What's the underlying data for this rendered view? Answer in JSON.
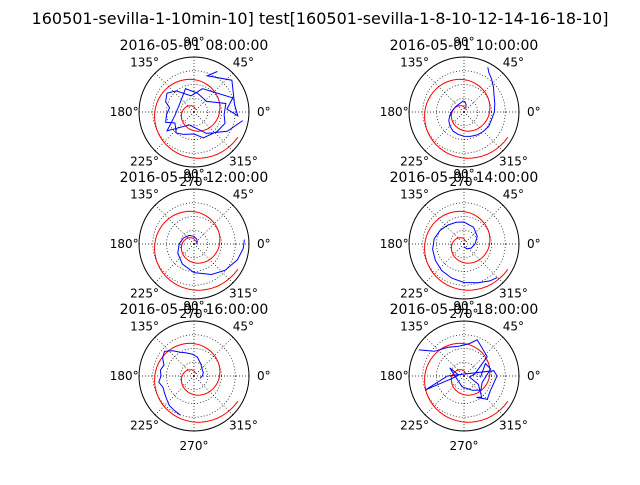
{
  "figure": {
    "title": "160501-sevilla-1-10min-10] test[160501-sevilla-1-8-10-12-14-16-18-10]"
  },
  "chart_data": [
    {
      "type": "polar-line",
      "title": "2016-05-01 08:00:00",
      "angular_ticks": [
        "0°",
        "45°",
        "90°",
        "135°",
        "180°",
        "225°",
        "270°",
        "315°"
      ],
      "series": [
        {
          "color": "#ff0000",
          "points": "spiral"
        },
        {
          "color": "#0000ff",
          "points": [
            [
              60,
              0.85
            ],
            [
              70,
              0.7
            ],
            [
              40,
              0.9
            ],
            [
              10,
              0.75
            ],
            [
              355,
              0.8
            ],
            [
              5,
              0.6
            ],
            [
              20,
              0.75
            ],
            [
              70,
              0.45
            ],
            [
              100,
              0.3
            ],
            [
              130,
              0.5
            ],
            [
              145,
              0.6
            ],
            [
              160,
              0.55
            ],
            [
              170,
              0.45
            ],
            [
              185,
              0.5
            ],
            [
              200,
              0.55
            ],
            [
              210,
              0.4
            ],
            [
              230,
              0.5
            ],
            [
              245,
              0.45
            ],
            [
              270,
              0.4
            ],
            [
              290,
              0.5
            ],
            [
              320,
              0.55
            ],
            [
              340,
              0.6
            ],
            [
              355,
              0.55
            ],
            [
              15,
              0.6
            ],
            [
              40,
              0.3
            ],
            [
              80,
              0.35
            ],
            [
              110,
              0.45
            ],
            [
              150,
              0.3
            ],
            [
              190,
              0.35
            ],
            [
              215,
              0.6
            ],
            [
              250,
              0.25
            ],
            [
              300,
              0.45
            ],
            [
              330,
              0.7
            ],
            [
              350,
              0.9
            ]
          ]
        }
      ]
    },
    {
      "type": "polar-line",
      "title": "2016-05-01 10:00:00",
      "angular_ticks": [
        "0°",
        "45°",
        "90°",
        "135°",
        "180°",
        "225°",
        "270°",
        "315°"
      ],
      "series": [
        {
          "color": "#ff0000",
          "points": "spiral"
        },
        {
          "color": "#0000ff",
          "points": [
            [
              62,
              0.92
            ],
            [
              58,
              0.85
            ],
            [
              50,
              0.78
            ],
            [
              40,
              0.7
            ],
            [
              30,
              0.63
            ],
            [
              15,
              0.58
            ],
            [
              0,
              0.55
            ],
            [
              345,
              0.52
            ],
            [
              330,
              0.52
            ],
            [
              315,
              0.5
            ],
            [
              300,
              0.48
            ],
            [
              285,
              0.46
            ],
            [
              270,
              0.44
            ],
            [
              255,
              0.42
            ],
            [
              240,
              0.4
            ],
            [
              225,
              0.36
            ],
            [
              210,
              0.32
            ],
            [
              195,
              0.27
            ],
            [
              180,
              0.23
            ],
            [
              165,
              0.2
            ],
            [
              150,
              0.18
            ],
            [
              135,
              0.17
            ],
            [
              120,
              0.17
            ],
            [
              105,
              0.18
            ],
            [
              95,
              0.2
            ],
            [
              85,
              0.19
            ],
            [
              75,
              0.14
            ],
            [
              65,
              0.08
            ]
          ]
        }
      ]
    },
    {
      "type": "polar-line",
      "title": "2016-05-01 12:00:00",
      "angular_ticks": [
        "0°",
        "45°",
        "90°",
        "135°",
        "180°",
        "225°",
        "270°",
        "315°"
      ],
      "series": [
        {
          "color": "#ff0000",
          "points": "spiral"
        },
        {
          "color": "#0000ff",
          "points": [
            [
              0,
              0.03
            ],
            [
              30,
              0.07
            ],
            [
              60,
              0.1
            ],
            [
              90,
              0.14
            ],
            [
              120,
              0.18
            ],
            [
              150,
              0.22
            ],
            [
              180,
              0.27
            ],
            [
              210,
              0.34
            ],
            [
              240,
              0.42
            ],
            [
              270,
              0.52
            ],
            [
              300,
              0.64
            ],
            [
              320,
              0.74
            ],
            [
              340,
              0.84
            ],
            [
              355,
              0.9
            ],
            [
              5,
              0.92
            ]
          ]
        }
      ]
    },
    {
      "type": "polar-line",
      "title": "2016-05-01 14:00:00",
      "angular_ticks": [
        "0°",
        "45°",
        "90°",
        "135°",
        "180°",
        "225°",
        "270°",
        "315°"
      ],
      "series": [
        {
          "color": "#ff0000",
          "points": "spiral"
        },
        {
          "color": "#0000ff",
          "points": [
            [
              270,
              0.05
            ],
            [
              300,
              0.1
            ],
            [
              330,
              0.15
            ],
            [
              0,
              0.2
            ],
            [
              30,
              0.28
            ],
            [
              60,
              0.35
            ],
            [
              90,
              0.4
            ],
            [
              110,
              0.42
            ],
            [
              130,
              0.45
            ],
            [
              150,
              0.5
            ],
            [
              170,
              0.55
            ],
            [
              190,
              0.58
            ],
            [
              210,
              0.6
            ],
            [
              230,
              0.63
            ],
            [
              250,
              0.66
            ],
            [
              270,
              0.7
            ],
            [
              290,
              0.75
            ],
            [
              305,
              0.82
            ],
            [
              315,
              0.86
            ]
          ]
        }
      ]
    },
    {
      "type": "polar-line",
      "title": "2016-05-01 16:00:00",
      "angular_ticks": [
        "0°",
        "45°",
        "90°",
        "135°",
        "180°",
        "225°",
        "270°",
        "315°"
      ],
      "series": [
        {
          "color": "#ff0000",
          "points": "spiral"
        },
        {
          "color": "#0000ff",
          "points": [
            [
              250,
              0.75
            ],
            [
              240,
              0.72
            ],
            [
              230,
              0.7
            ],
            [
              220,
              0.65
            ],
            [
              210,
              0.62
            ],
            [
              200,
              0.6
            ],
            [
              190,
              0.65
            ],
            [
              180,
              0.6
            ],
            [
              170,
              0.62
            ],
            [
              160,
              0.58
            ],
            [
              150,
              0.66
            ],
            [
              140,
              0.7
            ],
            [
              130,
              0.6
            ],
            [
              120,
              0.5
            ],
            [
              110,
              0.45
            ],
            [
              95,
              0.4
            ],
            [
              80,
              0.35
            ],
            [
              60,
              0.25
            ],
            [
              45,
              0.2
            ],
            [
              20,
              0.18
            ],
            [
              0,
              0.15
            ],
            [
              340,
              0.12
            ]
          ]
        }
      ]
    },
    {
      "type": "polar-line",
      "title": "2016-05-01 18:00:00",
      "angular_ticks": [
        "0°",
        "45°",
        "90°",
        "135°",
        "180°",
        "225°",
        "270°",
        "315°"
      ],
      "series": [
        {
          "color": "#ff0000",
          "points": "spiral"
        },
        {
          "color": "#0000ff",
          "points": [
            [
              150,
              0.95
            ],
            [
              140,
              0.7
            ],
            [
              120,
              0.6
            ],
            [
              100,
              0.55
            ],
            [
              80,
              0.6
            ],
            [
              70,
              0.7
            ],
            [
              40,
              0.55
            ],
            [
              10,
              0.2
            ],
            [
              350,
              0.1
            ],
            [
              330,
              0.3
            ],
            [
              310,
              0.5
            ],
            [
              300,
              0.45
            ],
            [
              315,
              0.6
            ],
            [
              330,
              0.55
            ],
            [
              0,
              0.6
            ],
            [
              10,
              0.55
            ],
            [
              180,
              0.3
            ],
            [
              200,
              0.75
            ],
            [
              190,
              0.2
            ],
            [
              170,
              0.1
            ],
            [
              150,
              0.3
            ],
            [
              260,
              0.2
            ],
            [
              300,
              0.3
            ],
            [
              320,
              0.4
            ],
            [
              340,
              0.35
            ],
            [
              15,
              0.5
            ],
            [
              30,
              0.45
            ],
            [
              355,
              0.3
            ]
          ]
        }
      ]
    }
  ]
}
